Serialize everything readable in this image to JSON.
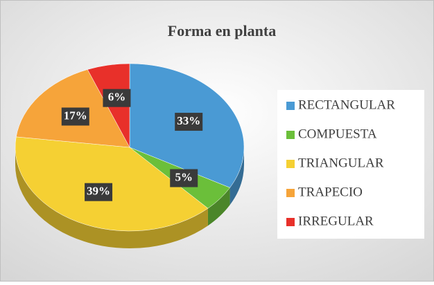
{
  "chart_data": {
    "type": "pie",
    "title": "Forma en planta",
    "categories": [
      "RECTANGULAR",
      "COMPUESTA",
      "TRIANGULAR",
      "TRAPECIO",
      "IRREGULAR"
    ],
    "values": [
      33,
      5,
      39,
      17,
      6
    ],
    "value_labels": [
      "33%",
      "5%",
      "39%",
      "17%",
      "6%"
    ],
    "colors": [
      "#4a9ad4",
      "#6bbf3a",
      "#f5d033",
      "#f6a43a",
      "#e8302a"
    ],
    "legend": "right"
  }
}
